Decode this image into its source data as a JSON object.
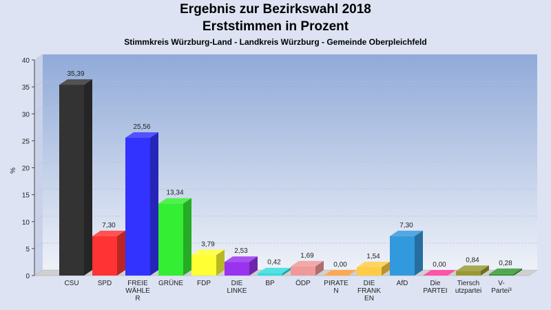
{
  "title": "Ergebnis zur Bezirkswahl 2018",
  "subtitle": "Erststimmen in Prozent",
  "subsubtitle": "Stimmkreis Würzburg-Land - Landkreis Würzburg - Gemeinde Oberpleichfeld",
  "chart_data": {
    "type": "bar",
    "ylabel": "%",
    "ylim": [
      0,
      40
    ],
    "yticks": [
      0,
      5,
      10,
      15,
      20,
      25,
      30,
      35,
      40
    ],
    "categories": [
      [
        "CSU"
      ],
      [
        "SPD"
      ],
      [
        "FREIE",
        "WÄHLE",
        "R"
      ],
      [
        "GRÜNE"
      ],
      [
        "FDP"
      ],
      [
        "DIE",
        "LINKE"
      ],
      [
        "BP"
      ],
      [
        "ÖDP"
      ],
      [
        "PIRATE",
        "N"
      ],
      [
        "DIE",
        "FRANK",
        "EN"
      ],
      [
        "AfD"
      ],
      [
        "Die",
        "PARTEI"
      ],
      [
        "Tiersch",
        "utzpartei"
      ],
      [
        "V-",
        "Partei³"
      ]
    ],
    "values": [
      35.39,
      7.3,
      25.56,
      13.34,
      3.79,
      2.53,
      0.42,
      1.69,
      0.0,
      1.54,
      7.3,
      0.0,
      0.84,
      0.28
    ],
    "value_labels": [
      "35,39",
      "7,30",
      "25,56",
      "13,34",
      "3,79",
      "2,53",
      "0,42",
      "1,69",
      "0,00",
      "1,54",
      "7,30",
      "0,00",
      "0,84",
      "0,28"
    ],
    "colors": [
      "#333333",
      "#ff3333",
      "#3333ff",
      "#33ee33",
      "#ffff33",
      "#9933ee",
      "#33dddd",
      "#f09999",
      "#ff9933",
      "#ffcc44",
      "#3399dd",
      "#ff3399",
      "#999933",
      "#339933"
    ]
  }
}
